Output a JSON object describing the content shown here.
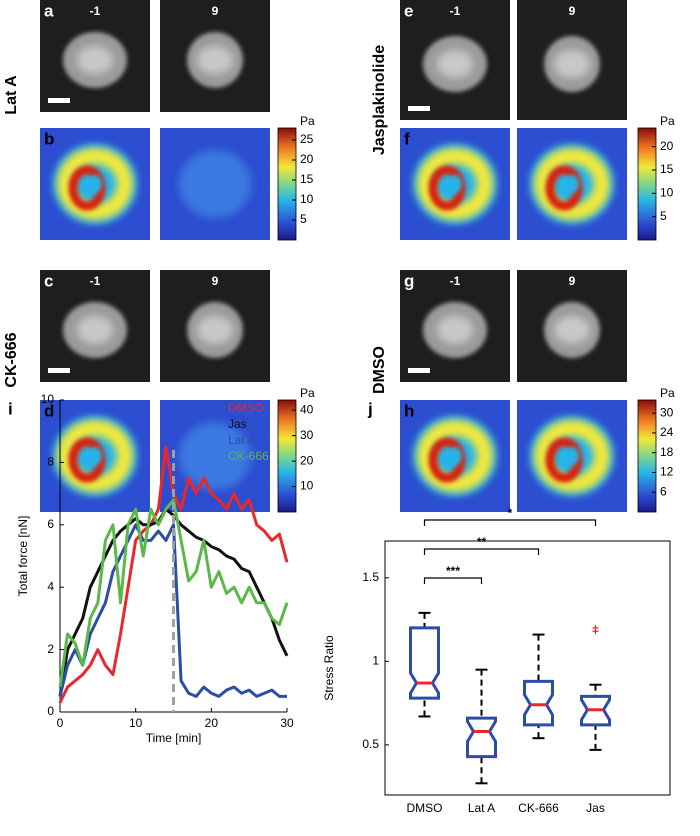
{
  "rows": [
    {
      "condition": "Lat A",
      "image_letter": "a",
      "times": [
        "-1",
        "9"
      ],
      "map_letter": "b",
      "colorbar": {
        "unit": "Pa",
        "lim": [
          0,
          28
        ],
        "ticks": [
          5,
          10,
          15,
          20,
          25
        ]
      }
    },
    {
      "condition": "CK-666",
      "image_letter": "c",
      "times": [
        "-1",
        "9"
      ],
      "map_letter": "d",
      "colorbar": {
        "unit": "Pa",
        "lim": [
          0,
          44
        ],
        "ticks": [
          10,
          20,
          30,
          40
        ]
      }
    },
    {
      "condition": "Jasplakinolide",
      "image_letter": "e",
      "times": [
        "-1",
        "9"
      ],
      "map_letter": "f",
      "colorbar": {
        "unit": "Pa",
        "lim": [
          0,
          24
        ],
        "ticks": [
          5,
          10,
          15,
          20
        ]
      }
    },
    {
      "condition": "DMSO",
      "image_letter": "g",
      "times": [
        "-1",
        "9"
      ],
      "map_letter": "h",
      "colorbar": {
        "unit": "Pa",
        "lim": [
          0,
          34
        ],
        "ticks": [
          6,
          12,
          18,
          24,
          30
        ]
      }
    }
  ],
  "chart_data": [
    {
      "type": "line",
      "label": "i",
      "xlabel": "Time [min]",
      "ylabel": "Total force [nN]",
      "x": [
        0,
        1,
        2,
        3,
        4,
        5,
        6,
        7,
        8,
        9,
        10,
        11,
        12,
        13,
        14,
        15,
        16,
        17,
        18,
        19,
        20,
        21,
        22,
        23,
        24,
        25,
        26,
        27,
        28,
        29,
        30
      ],
      "xlim": [
        0,
        30
      ],
      "xticks": [
        0,
        10,
        20,
        30
      ],
      "ylim": [
        0,
        10
      ],
      "yticks": [
        0,
        2,
        4,
        6,
        8,
        10
      ],
      "marker_x": 15,
      "marker_color": "#a0a0a0",
      "series": [
        {
          "name": "DMSO",
          "color": "#e8282c",
          "values": [
            0.3,
            0.8,
            1,
            1.2,
            1.5,
            2,
            1.5,
            1.2,
            2.5,
            4,
            5.5,
            5.8,
            6,
            6.5,
            8.5,
            7,
            6.5,
            7.5,
            7,
            7.5,
            7,
            6.8,
            6.5,
            7,
            6.5,
            6.8,
            6,
            5.8,
            5.5,
            5.7,
            4.8
          ]
        },
        {
          "name": "Jas",
          "color": "#111111",
          "values": [
            0.5,
            2,
            2.5,
            3,
            4,
            4.5,
            5,
            5.5,
            5.8,
            6,
            6.2,
            6,
            6,
            6.1,
            6.5,
            6.3,
            6,
            5.8,
            5.6,
            5.5,
            5.3,
            5.2,
            5,
            4.9,
            4.6,
            4.5,
            4,
            3.5,
            3,
            2.3,
            1.8
          ]
        },
        {
          "name": "Lat A",
          "color": "#2b4da8",
          "values": [
            0.5,
            1.5,
            2,
            1.5,
            2.5,
            3,
            3.5,
            4.5,
            5,
            5.5,
            6,
            5.5,
            5.5,
            5.8,
            5.5,
            6,
            1,
            0.6,
            0.5,
            0.8,
            0.6,
            0.5,
            0.7,
            0.8,
            0.6,
            0.7,
            0.5,
            0.6,
            0.7,
            0.5,
            0.5
          ]
        },
        {
          "name": "CK-666",
          "color": "#5cb848",
          "values": [
            0.8,
            2.5,
            2.2,
            1.5,
            3,
            3.5,
            5.5,
            6,
            3.5,
            6,
            6.5,
            5,
            6.5,
            6,
            6.5,
            6.8,
            5.5,
            4.2,
            4.5,
            5.5,
            4,
            4.5,
            3.8,
            4,
            3.5,
            4,
            3.5,
            3.5,
            3,
            2.8,
            3.5
          ]
        }
      ]
    },
    {
      "type": "box",
      "label": "j",
      "ylabel": "Stress Ratio",
      "categories": [
        "DMSO",
        "Lat A",
        "CK-666",
        "Jas"
      ],
      "ylim": [
        0.2,
        1.72
      ],
      "yticks": [
        0.5,
        1,
        1.5
      ],
      "box_color": "#2b4da8",
      "median_color": "#e8282c",
      "boxes": [
        {
          "low": 0.67,
          "q1": 0.78,
          "median": 0.87,
          "q3": 1.2,
          "high": 1.29,
          "outliers": []
        },
        {
          "low": 0.27,
          "q1": 0.43,
          "median": 0.58,
          "q3": 0.66,
          "high": 0.95,
          "outliers": []
        },
        {
          "low": 0.54,
          "q1": 0.62,
          "median": 0.74,
          "q3": 0.88,
          "high": 1.16,
          "outliers": []
        },
        {
          "low": 0.47,
          "q1": 0.62,
          "median": 0.71,
          "q3": 0.79,
          "high": 0.86,
          "outliers": [
            1.18,
            1.2
          ]
        }
      ],
      "annotations": [
        {
          "text": "***",
          "from": 0,
          "to": 1
        },
        {
          "text": "**",
          "from": 0,
          "to": 2
        },
        {
          "text": "*",
          "from": 0,
          "to": 3
        }
      ]
    }
  ]
}
